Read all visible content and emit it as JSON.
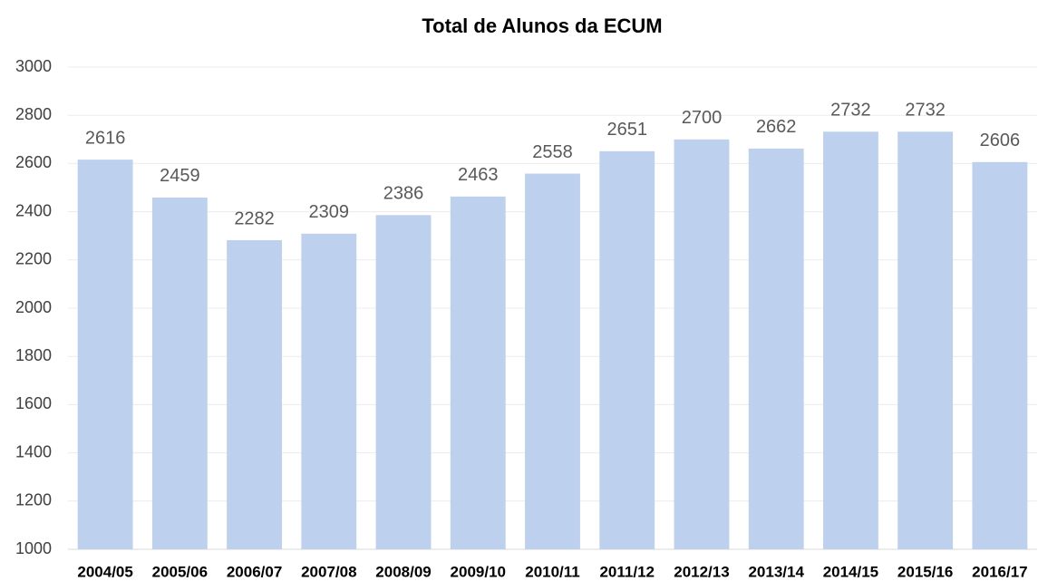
{
  "chart_data": {
    "type": "bar",
    "title": "Total de Alunos da ECUM",
    "categories": [
      "2004/05",
      "2005/06",
      "2006/07",
      "2007/08",
      "2008/09",
      "2009/10",
      "2010/11",
      "2011/12",
      "2012/13",
      "2013/14",
      "2014/15",
      "2015/16",
      "2016/17"
    ],
    "values": [
      2616,
      2459,
      2282,
      2309,
      2386,
      2463,
      2558,
      2651,
      2700,
      2662,
      2732,
      2732,
      2606
    ],
    "color": "#bdd0ee",
    "ylim": [
      1000,
      3000
    ],
    "yticks": [
      1000,
      1200,
      1400,
      1600,
      1800,
      2000,
      2200,
      2400,
      2600,
      2800,
      3000
    ],
    "grid": true
  }
}
